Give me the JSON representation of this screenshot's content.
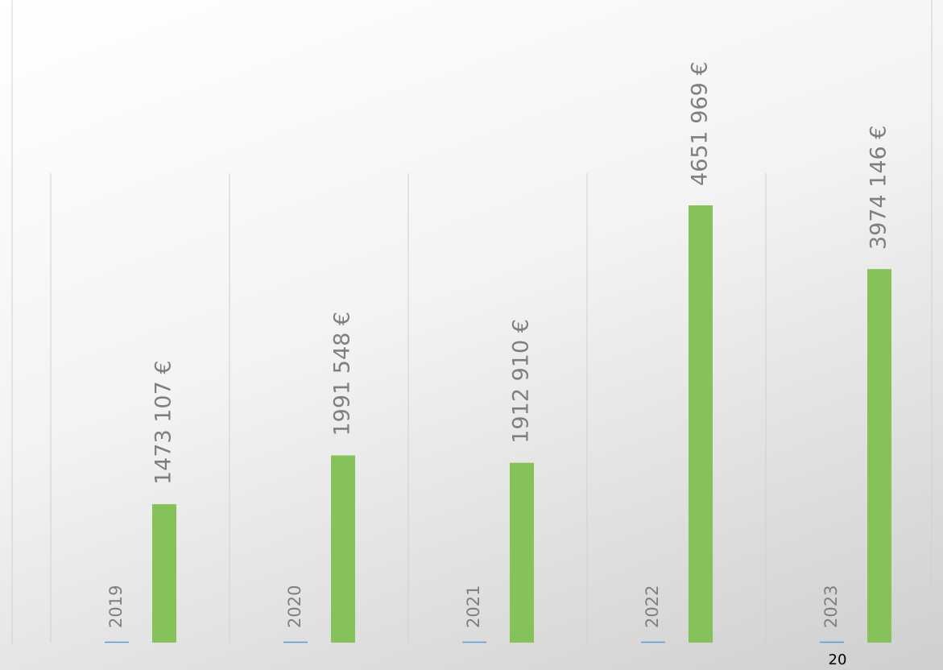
{
  "chart_data": {
    "type": "bar",
    "categories": [
      "2019",
      "2020",
      "2021",
      "2022",
      "2023"
    ],
    "series": [
      {
        "color": "#5b9bd5",
        "values": [
          0,
          0,
          0,
          0,
          0
        ]
      },
      {
        "color": "#86c25a",
        "values": [
          1473107,
          1991548,
          1912910,
          4651969,
          3974146
        ],
        "value_labels": [
          "1473 107 €",
          "1991 548 €",
          "1912 910 €",
          "4651 969 €",
          "3974 146 €"
        ]
      }
    ],
    "ylim": [
      0,
      5500000
    ]
  },
  "page_number": "20"
}
